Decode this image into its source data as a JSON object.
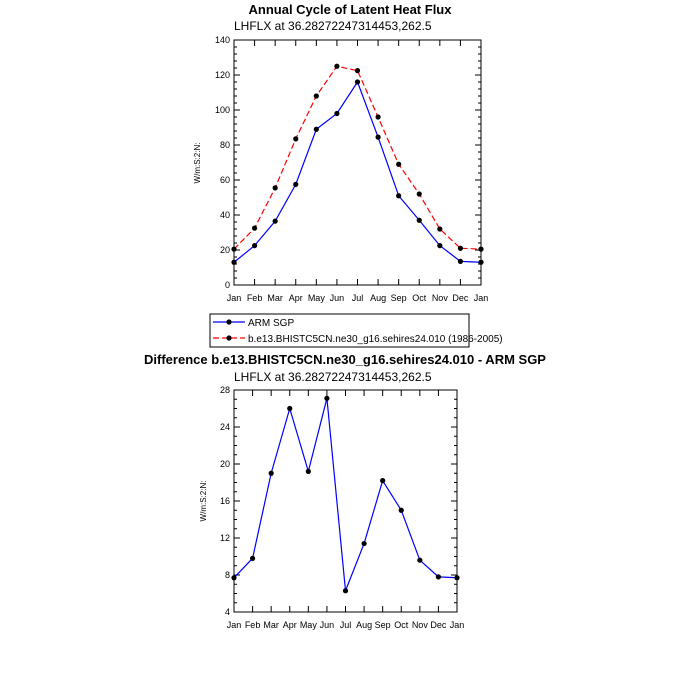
{
  "chart_data": [
    {
      "type": "line",
      "title": "Annual Cycle of Latent Heat Flux",
      "subtitle": "LHFLX at 36.28272247314453,262.5",
      "ylabel": "W/m:S:2:N:",
      "xlabel": "",
      "categories": [
        "Jan",
        "Feb",
        "Mar",
        "Apr",
        "May",
        "Jun",
        "Jul",
        "Aug",
        "Sep",
        "Oct",
        "Nov",
        "Dec",
        "Jan"
      ],
      "ylim": [
        0,
        140
      ],
      "yticks": [
        0,
        20,
        40,
        60,
        80,
        100,
        120,
        140
      ],
      "grid": false,
      "legend": "bottom",
      "series": [
        {
          "name": "ARM SGP",
          "color": "#0000ff",
          "dash": "solid",
          "values": [
            13,
            22.5,
            36.5,
            57.5,
            89,
            98,
            116,
            84.5,
            51,
            37,
            22.5,
            13.5,
            13
          ]
        },
        {
          "name": "b.e13.BHISTC5CN.ne30_g16.sehires24.010 (1986-2005)",
          "color": "#ff0000",
          "dash": "dashed",
          "values": [
            20.5,
            32.5,
            55.5,
            83.5,
            108,
            125,
            122.5,
            96,
            69,
            52,
            32,
            21,
            20.5
          ]
        }
      ]
    },
    {
      "type": "line",
      "title": "Difference b.e13.BHISTC5CN.ne30_g16.sehires24.010 - ARM SGP",
      "subtitle": "LHFLX at 36.28272247314453,262.5",
      "ylabel": "W/m:S:2:N:",
      "xlabel": "",
      "categories": [
        "Jan",
        "Feb",
        "Mar",
        "Apr",
        "May",
        "Jun",
        "Jul",
        "Aug",
        "Sep",
        "Oct",
        "Nov",
        "Dec",
        "Jan"
      ],
      "ylim": [
        4,
        28
      ],
      "yticks": [
        4,
        8,
        12,
        16,
        20,
        24,
        28
      ],
      "grid": false,
      "series": [
        {
          "color": "#0000ff",
          "dash": "solid",
          "values": [
            7.7,
            9.8,
            19,
            26,
            19.2,
            27.1,
            6.3,
            11.4,
            18.2,
            15,
            9.6,
            7.8,
            7.7
          ]
        }
      ]
    }
  ]
}
